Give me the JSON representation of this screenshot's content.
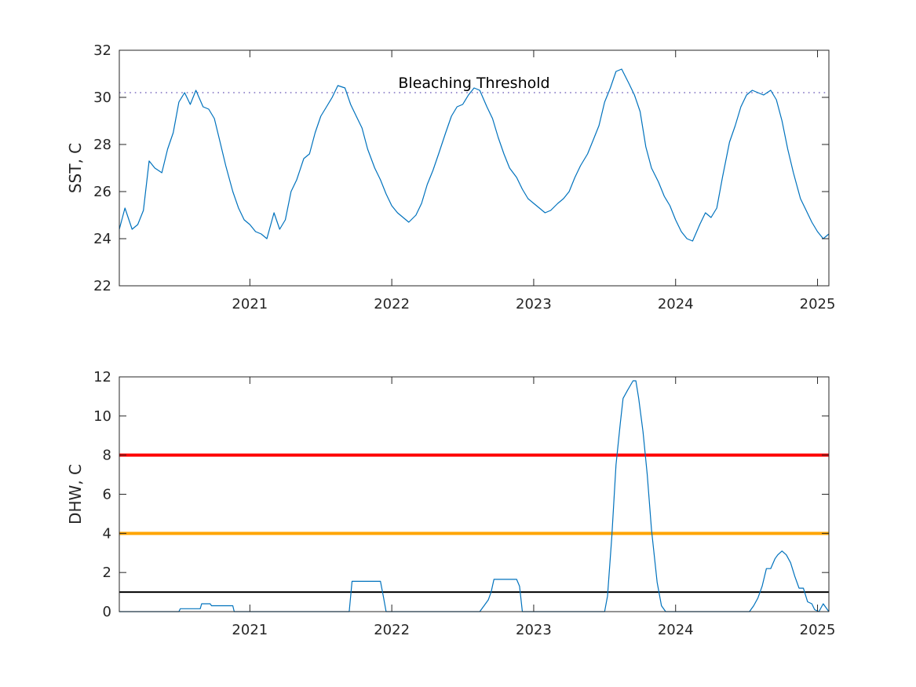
{
  "colors": {
    "series": "#0072bd",
    "threshold_dotted": "#7e6fc0",
    "alert_red": "#ff0000",
    "alert_orange": "#ffa500",
    "line_black": "#000000",
    "axis": "#262626"
  },
  "chart_data": [
    {
      "type": "line",
      "id": "sst",
      "ylabel": "SST, C",
      "xlabel": "",
      "xlim": [
        2020.08,
        2025.08
      ],
      "ylim": [
        22,
        32
      ],
      "xticks": [
        2021,
        2022,
        2023,
        2024,
        2025
      ],
      "xtick_labels": [
        "2021",
        "2022",
        "2023",
        "2024",
        "2025"
      ],
      "yticks": [
        22,
        24,
        26,
        28,
        30,
        32
      ],
      "ytick_labels": [
        "22",
        "24",
        "26",
        "28",
        "30",
        "32"
      ],
      "grid": false,
      "reference_line": {
        "y": 30.2,
        "style": "dotted",
        "label": "Bleaching Threshold"
      },
      "series": [
        {
          "x": [
            2020.08,
            2020.12,
            2020.17,
            2020.21,
            2020.25,
            2020.29,
            2020.33,
            2020.38,
            2020.42,
            2020.46,
            2020.5,
            2020.54,
            2020.58,
            2020.62,
            2020.67,
            2020.71,
            2020.75,
            2020.79,
            2020.83,
            2020.88,
            2020.92,
            2020.96,
            2021.0,
            2021.04,
            2021.08,
            2021.12,
            2021.17,
            2021.21,
            2021.25,
            2021.29,
            2021.33,
            2021.38,
            2021.42,
            2021.46,
            2021.5,
            2021.54,
            2021.58,
            2021.62,
            2021.67,
            2021.71,
            2021.75,
            2021.79,
            2021.83,
            2021.88,
            2021.92,
            2021.96,
            2022.0,
            2022.04,
            2022.08,
            2022.12,
            2022.17,
            2022.21,
            2022.25,
            2022.29,
            2022.33,
            2022.38,
            2022.42,
            2022.46,
            2022.5,
            2022.54,
            2022.58,
            2022.62,
            2022.67,
            2022.71,
            2022.75,
            2022.79,
            2022.83,
            2022.88,
            2022.92,
            2022.96,
            2023.0,
            2023.04,
            2023.08,
            2023.12,
            2023.17,
            2023.21,
            2023.25,
            2023.29,
            2023.33,
            2023.38,
            2023.42,
            2023.46,
            2023.5,
            2023.54,
            2023.58,
            2023.62,
            2023.67,
            2023.71,
            2023.75,
            2023.79,
            2023.83,
            2023.88,
            2023.92,
            2023.96,
            2024.0,
            2024.04,
            2024.08,
            2024.12,
            2024.17,
            2024.21,
            2024.25,
            2024.29,
            2024.33,
            2024.38,
            2024.42,
            2024.46,
            2024.5,
            2024.54,
            2024.58,
            2024.62,
            2024.67,
            2024.71,
            2024.75,
            2024.79,
            2024.83,
            2024.88,
            2024.92,
            2024.96,
            2025.0,
            2025.04,
            2025.08
          ],
          "y": [
            24.4,
            25.3,
            24.4,
            24.6,
            25.2,
            27.3,
            27.0,
            26.8,
            27.8,
            28.5,
            29.8,
            30.2,
            29.7,
            30.3,
            29.6,
            29.5,
            29.1,
            28.1,
            27.1,
            26.0,
            25.3,
            24.8,
            24.6,
            24.3,
            24.2,
            24.0,
            25.1,
            24.4,
            24.8,
            26.0,
            26.5,
            27.4,
            27.6,
            28.5,
            29.2,
            29.6,
            30.0,
            30.5,
            30.4,
            29.7,
            29.2,
            28.7,
            27.8,
            27.0,
            26.5,
            25.9,
            25.4,
            25.1,
            24.9,
            24.7,
            25.0,
            25.5,
            26.3,
            26.9,
            27.6,
            28.5,
            29.2,
            29.6,
            29.7,
            30.1,
            30.4,
            30.3,
            29.6,
            29.1,
            28.3,
            27.6,
            27.0,
            26.6,
            26.1,
            25.7,
            25.5,
            25.3,
            25.1,
            25.2,
            25.5,
            25.7,
            26.0,
            26.6,
            27.1,
            27.6,
            28.2,
            28.8,
            29.8,
            30.4,
            31.1,
            31.2,
            30.6,
            30.1,
            29.4,
            27.9,
            27.0,
            26.4,
            25.8,
            25.4,
            24.8,
            24.3,
            24.0,
            23.9,
            24.6,
            25.1,
            24.9,
            25.3,
            26.6,
            28.1,
            28.8,
            29.6,
            30.1,
            30.3,
            30.2,
            30.1,
            30.3,
            29.9,
            29.0,
            27.8,
            26.8,
            25.7,
            25.2,
            24.7,
            24.3,
            24.0,
            24.2
          ]
        }
      ]
    },
    {
      "type": "line",
      "id": "dhw",
      "ylabel": "DHW, C",
      "xlabel": "",
      "xlim": [
        2020.08,
        2025.08
      ],
      "ylim": [
        0,
        12
      ],
      "xticks": [
        2021,
        2022,
        2023,
        2024,
        2025
      ],
      "xtick_labels": [
        "2021",
        "2022",
        "2023",
        "2024",
        "2025"
      ],
      "yticks": [
        0,
        2,
        4,
        6,
        8,
        10,
        12
      ],
      "ytick_labels": [
        "0",
        "2",
        "4",
        "6",
        "8",
        "10",
        "12"
      ],
      "grid": false,
      "reference_lines": [
        {
          "y": 8,
          "color": "#ff0000"
        },
        {
          "y": 4,
          "color": "#ffa500"
        },
        {
          "y": 1,
          "color": "#000000"
        }
      ],
      "series": [
        {
          "x": [
            2020.08,
            2020.5,
            2020.51,
            2020.65,
            2020.66,
            2020.72,
            2020.73,
            2020.88,
            2020.89,
            2021.7,
            2021.72,
            2021.92,
            2021.94,
            2021.96,
            2022.62,
            2022.65,
            2022.68,
            2022.7,
            2022.72,
            2022.74,
            2022.88,
            2022.9,
            2022.92,
            2023.5,
            2023.52,
            2023.55,
            2023.58,
            2023.61,
            2023.63,
            2023.66,
            2023.7,
            2023.72,
            2023.74,
            2023.77,
            2023.8,
            2023.83,
            2023.87,
            2023.9,
            2023.93,
            2023.95,
            2024.52,
            2024.55,
            2024.58,
            2024.61,
            2024.64,
            2024.67,
            2024.7,
            2024.72,
            2024.75,
            2024.78,
            2024.81,
            2024.84,
            2024.87,
            2024.9,
            2024.93,
            2024.96,
            2024.98,
            2025.01,
            2025.04,
            2025.08
          ],
          "y": [
            0,
            0,
            0.15,
            0.15,
            0.4,
            0.4,
            0.3,
            0.3,
            0,
            0,
            1.55,
            1.55,
            0.8,
            0,
            0,
            0.3,
            0.6,
            1.0,
            1.65,
            1.65,
            1.65,
            1.3,
            0,
            0,
            0.8,
            3.8,
            7.5,
            9.6,
            10.9,
            11.3,
            11.8,
            11.8,
            10.9,
            9.2,
            7.0,
            4.2,
            1.5,
            0.3,
            0,
            0,
            0,
            0.3,
            0.7,
            1.3,
            2.2,
            2.2,
            2.7,
            2.9,
            3.1,
            2.9,
            2.5,
            1.8,
            1.2,
            1.2,
            0.5,
            0.4,
            0.1,
            0,
            0.4,
            0
          ]
        }
      ]
    }
  ]
}
